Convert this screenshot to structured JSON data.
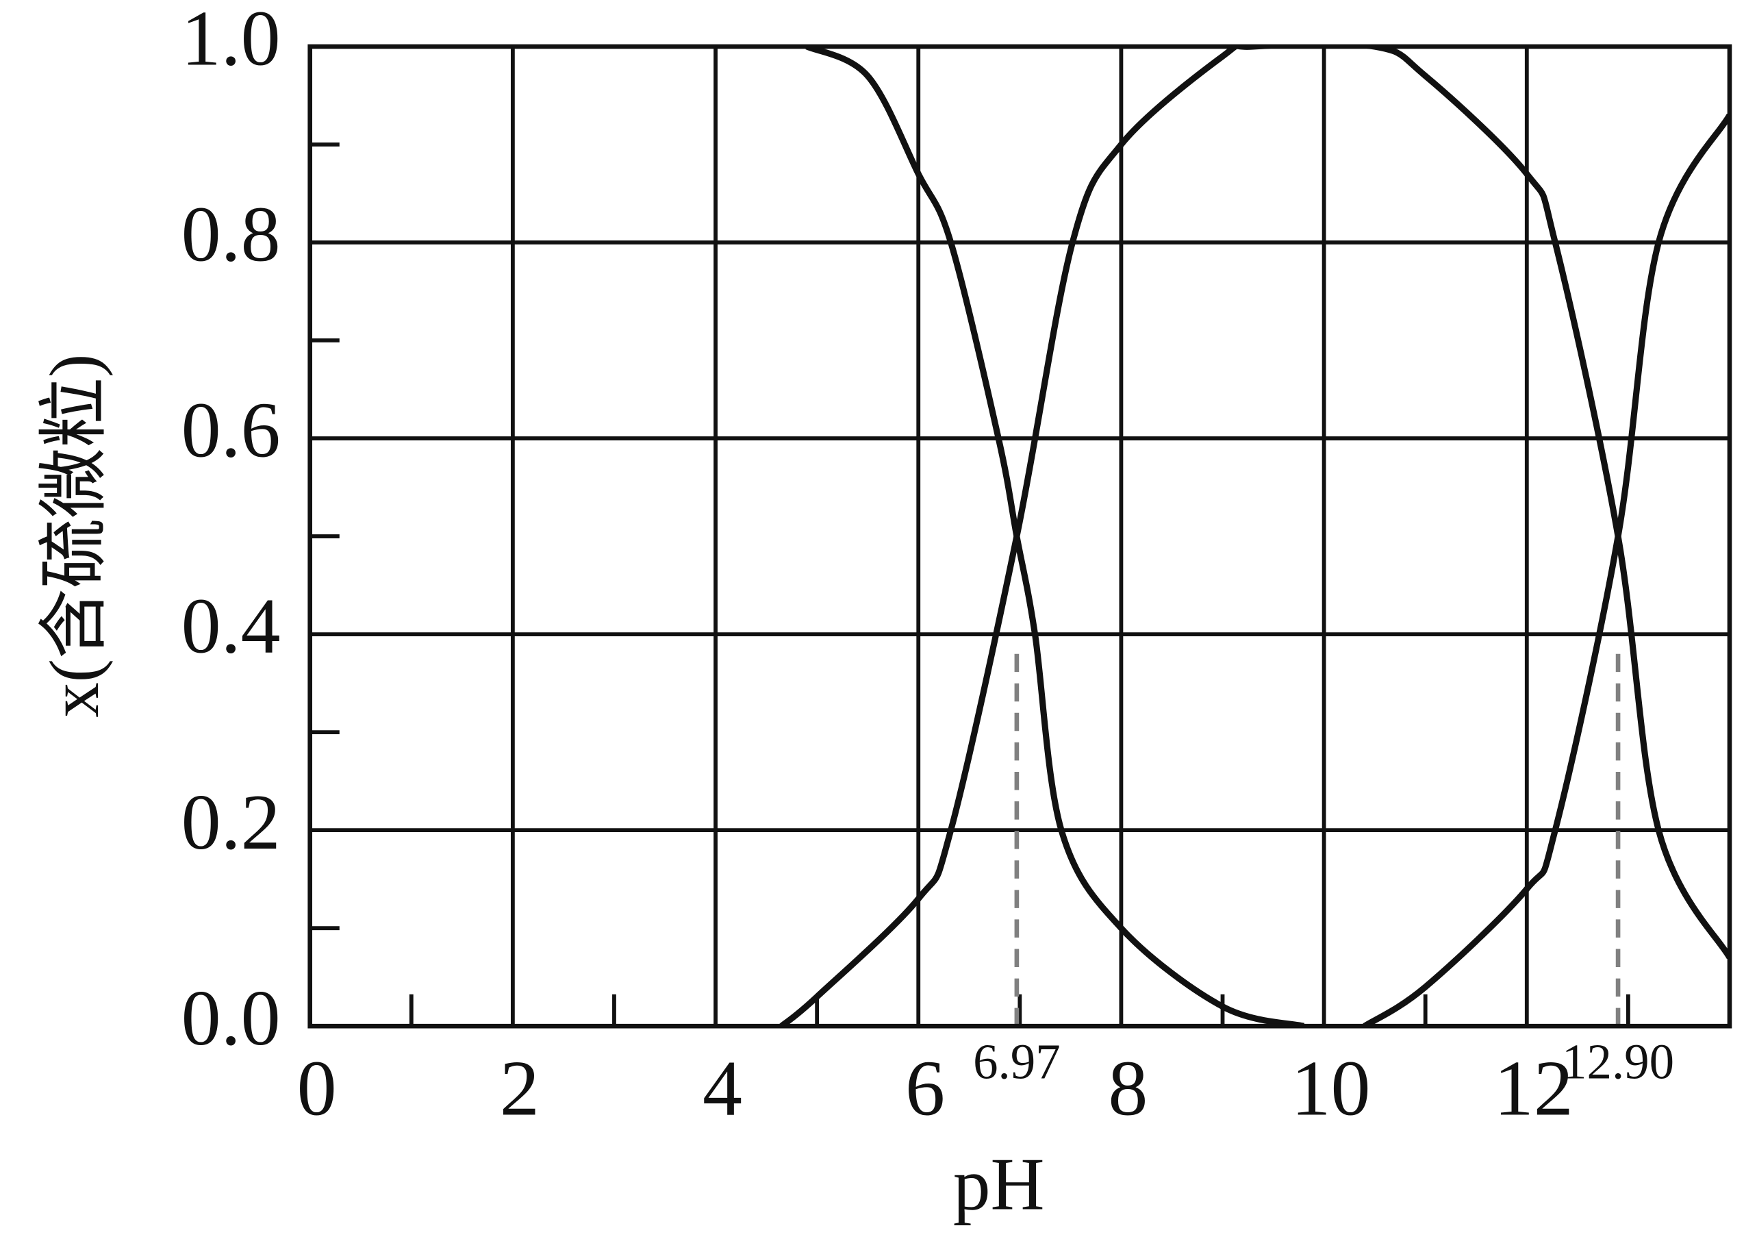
{
  "chart_data": {
    "type": "line",
    "x_label": "pH",
    "y_label": "x(含硫微粒)",
    "xlim": [
      0,
      14
    ],
    "ylim": [
      0,
      1
    ],
    "xticks": [
      0,
      2,
      4,
      6,
      8,
      10,
      12
    ],
    "yticks": [
      {
        "value": 0,
        "label": "0.0"
      },
      0.2,
      0.4,
      0.6,
      0.8,
      {
        "value": 1,
        "label": "1.0"
      }
    ],
    "x_minor_ticks": [
      1,
      3,
      5,
      7,
      9,
      11,
      13
    ],
    "y_minor_ticks": [
      0.1,
      0.3,
      0.5,
      0.7,
      0.9
    ],
    "grid": true,
    "series": [
      {
        "color": "#111111",
        "x": [
          4.9,
          5.5,
          6,
          6.32,
          6.79,
          6.97,
          7.15,
          7.41,
          8,
          9,
          9.8
        ],
        "values": [
          1,
          0.97,
          0.87,
          0.8,
          0.6,
          0.5,
          0.4,
          0.2,
          0.1,
          0.02,
          0
        ]
      },
      {
        "color": "#111111",
        "x": [
          4.65,
          5,
          6,
          6.32,
          6.97,
          7.52,
          8,
          9,
          9.3,
          10.5,
          11,
          12,
          12.28,
          12.9,
          13.3,
          14
        ],
        "values": [
          0,
          0.03,
          0.13,
          0.2,
          0.5,
          0.8,
          0.9,
          0.99,
          1,
          1,
          0.97,
          0.87,
          0.8,
          0.5,
          0.2,
          0.07
        ]
      },
      {
        "color": "#111111",
        "x": [
          10.4,
          11,
          12,
          12.28,
          12.9,
          13.3,
          14
        ],
        "values": [
          0,
          0.04,
          0.14,
          0.2,
          0.5,
          0.8,
          0.93
        ]
      }
    ],
    "annotations": [
      {
        "x": {
          "value": 6.97,
          "label": "6.97"
        },
        "y": 0.38,
        "color": "#808080"
      },
      {
        "x": {
          "value": 12.9,
          "label": "12.90"
        },
        "y": 0.38,
        "color": "#808080"
      }
    ]
  }
}
